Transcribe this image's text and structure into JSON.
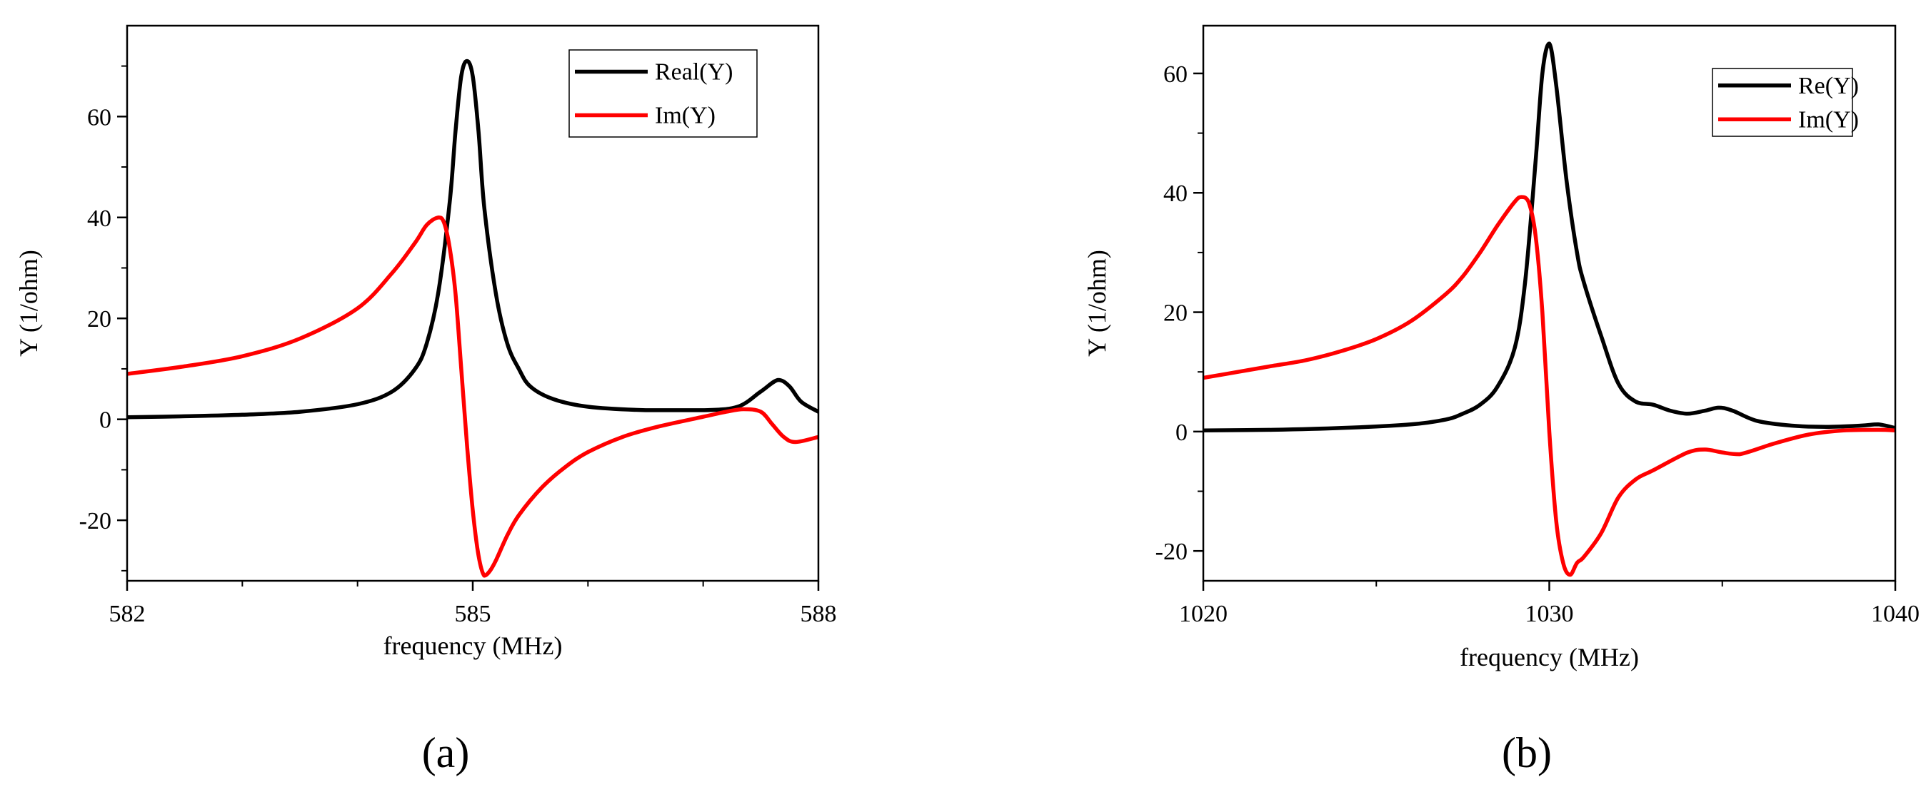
{
  "chart_data": [
    {
      "type": "line",
      "panel_label": "(a)",
      "xlabel": "frequency (MHz)",
      "ylabel": "Y (1/ohm)",
      "xlim": [
        582,
        588
      ],
      "ylim": [
        -32,
        78
      ],
      "x_ticks": [
        582,
        585,
        588
      ],
      "x_minor_ticks": [
        583,
        584,
        586,
        587
      ],
      "y_ticks": [
        -20,
        0,
        20,
        40,
        60
      ],
      "y_tick_labels": [
        "-20",
        "0",
        "20",
        "40",
        "60"
      ],
      "y_minor_ticks": [
        -30,
        -10,
        10,
        30,
        50,
        70
      ],
      "grid": false,
      "legend": "top-right",
      "series": [
        {
          "name": "Real(Y)",
          "color": "#000000",
          "x": [
            582,
            582.5,
            583,
            583.5,
            584,
            584.3,
            584.5,
            584.6,
            584.7,
            584.8,
            584.85,
            584.9,
            584.95,
            585.0,
            585.05,
            585.1,
            585.2,
            585.3,
            585.4,
            585.5,
            585.7,
            586.0,
            586.5,
            587.0,
            587.3,
            587.5,
            587.65,
            587.75,
            587.85,
            588
          ],
          "values": [
            0.4,
            0.6,
            0.9,
            1.5,
            3.0,
            5.5,
            10,
            15,
            25,
            43,
            57,
            68,
            71,
            68,
            57,
            42,
            25,
            15,
            10,
            6.5,
            4.0,
            2.5,
            1.8,
            1.8,
            2.5,
            5.5,
            7.8,
            6.5,
            3.5,
            1.5
          ]
        },
        {
          "name": "Im(Y)",
          "color": "#ff0000",
          "x": [
            582,
            582.5,
            583,
            583.5,
            584,
            584.3,
            584.5,
            584.6,
            584.7,
            584.75,
            584.8,
            584.85,
            584.9,
            584.95,
            585.0,
            585.05,
            585.1,
            585.15,
            585.2,
            585.3,
            585.4,
            585.6,
            585.8,
            586.0,
            586.3,
            586.6,
            587.0,
            587.2,
            587.35,
            587.5,
            587.6,
            587.7,
            587.8,
            588
          ],
          "values": [
            9,
            10.5,
            12.5,
            16,
            22,
            29,
            35,
            38.5,
            40,
            39,
            34,
            25,
            10,
            -5,
            -18,
            -27,
            -31,
            -30,
            -28,
            -23,
            -19,
            -13.5,
            -9.5,
            -6.5,
            -3.5,
            -1.5,
            0.5,
            1.5,
            2.0,
            1.5,
            -1.0,
            -3.5,
            -4.5,
            -3.5
          ]
        }
      ]
    },
    {
      "type": "line",
      "panel_label": "(b)",
      "xlabel": "frequency (MHz)",
      "ylabel": "Y (1/ohm)",
      "xlim": [
        1020,
        1040
      ],
      "ylim": [
        -25,
        68
      ],
      "x_ticks": [
        1020,
        1030,
        1040
      ],
      "x_minor_ticks": [
        1025,
        1035
      ],
      "y_ticks": [
        -20,
        0,
        20,
        40,
        60
      ],
      "y_tick_labels": [
        "-20",
        "0",
        "20",
        "40",
        "60"
      ],
      "y_minor_ticks": [
        -10,
        10,
        30,
        50
      ],
      "grid": false,
      "legend": "top-right",
      "series": [
        {
          "name": "Re(Y)",
          "color": "#000000",
          "x": [
            1020,
            1022,
            1024,
            1026,
            1027,
            1027.5,
            1028,
            1028.5,
            1029,
            1029.3,
            1029.6,
            1029.8,
            1030.0,
            1030.2,
            1030.5,
            1030.8,
            1031,
            1031.5,
            1032,
            1032.5,
            1033,
            1033.5,
            1034,
            1034.5,
            1034.9,
            1035.3,
            1036,
            1037,
            1038,
            1039,
            1039.5,
            1040
          ],
          "values": [
            0.2,
            0.3,
            0.6,
            1.2,
            2.0,
            3.0,
            4.5,
            7.5,
            14,
            25,
            45,
            60,
            65,
            58,
            42,
            30,
            25,
            16,
            8,
            5,
            4.5,
            3.5,
            3.0,
            3.5,
            4.0,
            3.5,
            1.8,
            1.0,
            0.8,
            1.0,
            1.2,
            0.6
          ]
        },
        {
          "name": "Im(Y)",
          "color": "#ff0000",
          "x": [
            1020,
            1021,
            1022,
            1023,
            1024,
            1025,
            1026,
            1027,
            1027.5,
            1028,
            1028.5,
            1029,
            1029.2,
            1029.4,
            1029.6,
            1029.8,
            1030,
            1030.2,
            1030.4,
            1030.6,
            1030.8,
            1031,
            1031.5,
            1032,
            1032.5,
            1033,
            1034,
            1034.5,
            1035,
            1035.5,
            1036.5,
            1037.5,
            1038.5,
            1039.5,
            1040
          ],
          "values": [
            9,
            10,
            11,
            12,
            13.5,
            15.5,
            18.5,
            23,
            26,
            30,
            34.5,
            38.5,
            39.3,
            38.5,
            33,
            20,
            0,
            -15,
            -22,
            -24,
            -22,
            -21,
            -17,
            -11,
            -8,
            -6.5,
            -3.5,
            -3.0,
            -3.5,
            -3.8,
            -2.0,
            -0.5,
            0.2,
            0.3,
            0.2
          ]
        }
      ]
    }
  ]
}
